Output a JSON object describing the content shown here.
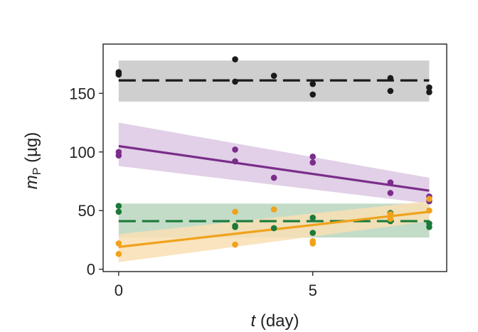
{
  "chart_data": {
    "type": "scatter",
    "title": "",
    "xlabel": {
      "var": "t",
      "rest": " (day)"
    },
    "ylabel": {
      "var": "m",
      "sub": "P",
      "rest": " (µg)"
    },
    "xlim": [
      -0.4,
      8.45
    ],
    "ylim": [
      -2,
      192
    ],
    "xticks": [
      0,
      5
    ],
    "yticks": [
      0,
      50,
      100,
      150
    ],
    "grid": false,
    "legend": "none",
    "series": [
      {
        "color": "#1a1a1a",
        "points": [
          [
            0,
            168
          ],
          [
            0,
            166
          ],
          [
            3,
            179
          ],
          [
            3,
            160
          ],
          [
            4,
            165
          ],
          [
            5,
            158
          ],
          [
            5,
            149
          ],
          [
            7,
            163
          ],
          [
            7,
            152
          ],
          [
            8,
            155
          ],
          [
            8,
            151
          ]
        ],
        "fit": {
          "style": "dashed",
          "x": [
            0,
            8
          ],
          "y": [
            161,
            161
          ]
        },
        "band": {
          "color": "#c7c7c7",
          "x": [
            0,
            8
          ],
          "upper": [
            178,
            178
          ],
          "lower": [
            143,
            143
          ]
        }
      },
      {
        "color": "#7b2d8b",
        "points": [
          [
            0,
            100
          ],
          [
            0,
            97
          ],
          [
            3,
            102
          ],
          [
            3,
            92
          ],
          [
            4,
            78
          ],
          [
            5,
            96
          ],
          [
            5,
            91
          ],
          [
            7,
            74
          ],
          [
            7,
            65
          ],
          [
            8,
            62
          ],
          [
            8,
            58
          ]
        ],
        "fit": {
          "style": "solid",
          "x": [
            0,
            8
          ],
          "y": [
            105,
            67
          ]
        },
        "band": {
          "color": "#dcc8e3",
          "x": [
            0,
            8
          ],
          "upper": [
            125,
            78
          ],
          "lower": [
            88,
            56
          ]
        }
      },
      {
        "color": "#1b7a3a",
        "points": [
          [
            0,
            54
          ],
          [
            0,
            49
          ],
          [
            3,
            37
          ],
          [
            3,
            36
          ],
          [
            4,
            35
          ],
          [
            5,
            44
          ],
          [
            5,
            31
          ],
          [
            7,
            48
          ],
          [
            7,
            41
          ],
          [
            8,
            39
          ],
          [
            8,
            36
          ]
        ],
        "fit": {
          "style": "dashed",
          "x": [
            0,
            8
          ],
          "y": [
            41,
            41
          ]
        },
        "band": {
          "color": "#b8d6be",
          "x": [
            0,
            8
          ],
          "upper": [
            56,
            56
          ],
          "lower": [
            27,
            27
          ]
        }
      },
      {
        "color": "#f0a21c",
        "points": [
          [
            0,
            22
          ],
          [
            0,
            13
          ],
          [
            3,
            49
          ],
          [
            3,
            21
          ],
          [
            4,
            51
          ],
          [
            5,
            24
          ],
          [
            5,
            22
          ],
          [
            7,
            47
          ],
          [
            7,
            43
          ],
          [
            8,
            60
          ],
          [
            8,
            50
          ]
        ],
        "fit": {
          "style": "solid",
          "x": [
            0,
            8
          ],
          "y": [
            19,
            49
          ]
        },
        "band": {
          "color": "#f9dfb4",
          "x": [
            0,
            8
          ],
          "upper": [
            30,
            58
          ],
          "lower": [
            6,
            41
          ]
        }
      }
    ]
  }
}
